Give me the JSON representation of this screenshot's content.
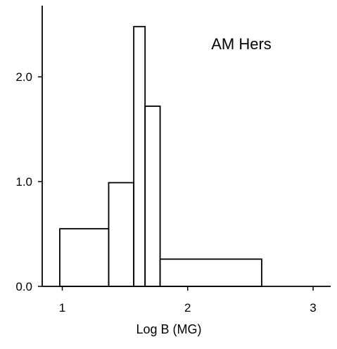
{
  "chart_data": {
    "type": "histogram",
    "title": "",
    "annotation": "AM Hers",
    "xlabel": "Log B (MG)",
    "ylabel": "",
    "xlim": [
      0.84,
      3.14
    ],
    "ylim": [
      0,
      2.68
    ],
    "x_ticks": [
      {
        "value": 1,
        "label": "1"
      },
      {
        "value": 2,
        "label": "2"
      },
      {
        "value": 3,
        "label": "3"
      }
    ],
    "y_ticks": [
      {
        "value": 0,
        "label": "0.0"
      },
      {
        "value": 1,
        "label": "1.0"
      },
      {
        "value": 2,
        "label": "2.0"
      }
    ],
    "bins": [
      {
        "x0": 0.98,
        "x1": 1.37,
        "value": 0.55
      },
      {
        "x0": 1.37,
        "x1": 1.57,
        "value": 0.99
      },
      {
        "x0": 1.57,
        "x1": 1.66,
        "value": 2.48
      },
      {
        "x0": 1.66,
        "x1": 1.78,
        "value": 1.72
      },
      {
        "x0": 1.78,
        "x1": 2.59,
        "value": 0.26
      }
    ],
    "grid": false,
    "legend": "none"
  }
}
